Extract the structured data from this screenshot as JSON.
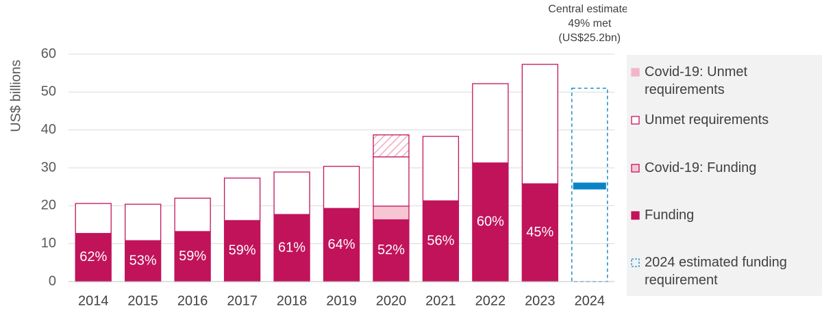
{
  "chart_data": {
    "type": "stacked_bar",
    "y_label": "US$ billions",
    "categories": [
      "2014",
      "2015",
      "2016",
      "2017",
      "2018",
      "2019",
      "2020",
      "2021",
      "2022",
      "2023",
      "2024"
    ],
    "ylim": [
      0,
      60
    ],
    "yticks": [
      0,
      10,
      20,
      30,
      40,
      50,
      60
    ],
    "grid": true,
    "edge_color": "#c0135a",
    "series": [
      {
        "name": "Funding",
        "color": "#c0135a",
        "fill": "solid",
        "values": [
          12.7,
          10.8,
          13.2,
          16.1,
          17.7,
          19.3,
          16.3,
          21.3,
          31.3,
          25.8,
          null
        ]
      },
      {
        "name": "Covid-19: Funding",
        "color": "#f7c6d4",
        "fill": "solid",
        "values": [
          null,
          null,
          null,
          null,
          null,
          null,
          3.6,
          null,
          null,
          null,
          null
        ]
      },
      {
        "name": "Unmet requirements",
        "color": "#ffffff",
        "fill": "outline",
        "values": [
          7.9,
          9.6,
          8.8,
          11.2,
          11.2,
          11.1,
          13.0,
          17.0,
          20.9,
          31.5,
          null
        ]
      },
      {
        "name": "Covid-19: Unmet requirements",
        "color": "#f4a7bd",
        "fill": "hatch",
        "values": [
          null,
          null,
          null,
          null,
          null,
          null,
          5.8,
          null,
          null,
          null,
          null
        ]
      }
    ],
    "funded_share": {
      "values": [
        62,
        53,
        59,
        59,
        61,
        64,
        52,
        56,
        60,
        45,
        null
      ],
      "value_labels": [
        "62%",
        "53%",
        "59%",
        "59%",
        "61%",
        "64%",
        "52%",
        "56%",
        "60%",
        "45%",
        null
      ]
    },
    "requirement": {
      "name": "2024 estimated funding requirement",
      "color": "#1a8fc9",
      "line_style": "dashed",
      "values": [
        null,
        null,
        null,
        null,
        null,
        null,
        null,
        null,
        null,
        null,
        51.0
      ]
    },
    "central_estimate": {
      "value": 25.2,
      "color": "#0a84c6",
      "annotation": [
        "Central estimate:",
        "49% met",
        "(US$25.2bn)"
      ]
    }
  }
}
